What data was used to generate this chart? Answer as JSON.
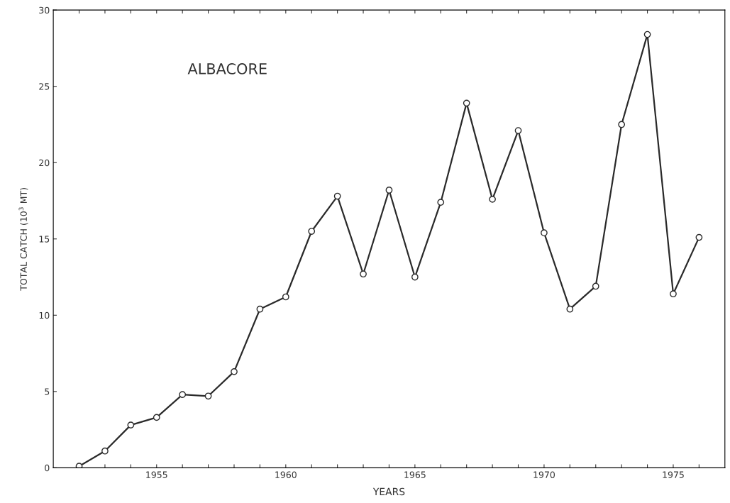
{
  "chart_data": {
    "type": "line",
    "xlabel": "YEARS",
    "ylabel": "TOTAL CATCH (10$^{3}$ MT)",
    "annotations": [
      "ALBACORE"
    ],
    "x": [
      1952,
      1953,
      1954,
      1955,
      1956,
      1957,
      1958,
      1959,
      1960,
      1961,
      1962,
      1963,
      1964,
      1965,
      1966,
      1967,
      1968,
      1969,
      1970,
      1971,
      1972,
      1973,
      1974,
      1975,
      1976
    ],
    "series": [
      {
        "color": "#2a2a2a",
        "values": [
          0.1,
          1.1,
          2.8,
          3.3,
          4.8,
          4.7,
          6.3,
          10.4,
          11.2,
          15.5,
          17.8,
          12.7,
          18.2,
          12.5,
          17.4,
          23.9,
          17.6,
          22.1,
          15.4,
          10.4,
          11.9,
          22.5,
          28.4,
          11.4,
          15.1
        ]
      }
    ],
    "xlim": [
      1951,
      1977
    ],
    "xticks": [
      {
        "value": 1952,
        "label": null
      },
      {
        "value": 1953,
        "label": null
      },
      {
        "value": 1954,
        "label": null
      },
      1955,
      {
        "value": 1956,
        "label": null
      },
      {
        "value": 1957,
        "label": null
      },
      {
        "value": 1958,
        "label": null
      },
      {
        "value": 1959,
        "label": null
      },
      1960,
      {
        "value": 1961,
        "label": null
      },
      {
        "value": 1962,
        "label": null
      },
      {
        "value": 1963,
        "label": null
      },
      {
        "value": 1964,
        "label": null
      },
      1965,
      {
        "value": 1966,
        "label": null
      },
      {
        "value": 1967,
        "label": null
      },
      {
        "value": 1968,
        "label": null
      },
      {
        "value": 1969,
        "label": null
      },
      1970,
      {
        "value": 1971,
        "label": null
      },
      {
        "value": 1972,
        "label": null
      },
      {
        "value": 1973,
        "label": null
      },
      {
        "value": 1974,
        "label": null
      },
      1975,
      {
        "value": 1976,
        "label": null
      }
    ],
    "ylim": [
      0,
      30
    ],
    "yticks": [
      0,
      5,
      10,
      15,
      20,
      25,
      30
    ],
    "grid": false,
    "marker": "circle",
    "line_style": "solid"
  }
}
